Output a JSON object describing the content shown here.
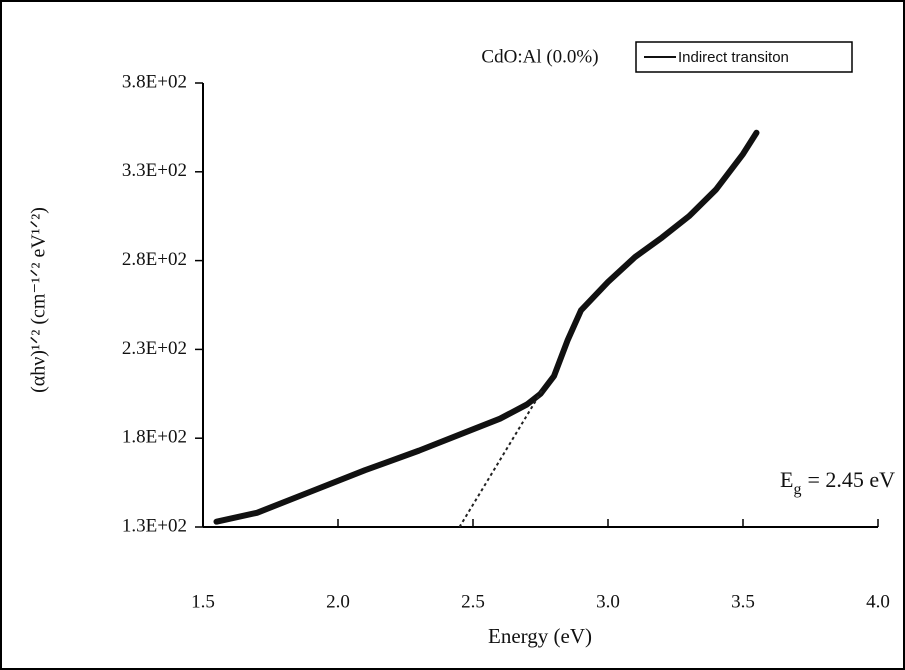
{
  "chart_data": {
    "type": "line",
    "annotation": "CdO:Al (0.0%)",
    "x_label": "Energy (eV)",
    "y_label": "(αhν)¹ᐟ² (cm⁻¹ᐟ² eV¹ᐟ²)",
    "gap_label": {
      "symbol": "E",
      "subscript": "g",
      "text": "= 2.45 eV"
    },
    "series": [
      {
        "name": "Indirect transiton",
        "color": "#111111",
        "x": [
          1.55,
          1.7,
          1.9,
          2.1,
          2.3,
          2.5,
          2.6,
          2.7,
          2.75,
          2.8,
          2.85,
          2.9,
          3.0,
          3.1,
          3.2,
          3.3,
          3.4,
          3.5,
          3.55
        ],
        "values": [
          133,
          138,
          150,
          162,
          173,
          185,
          191,
          199,
          205,
          215,
          235,
          252,
          268,
          282,
          293,
          305,
          320,
          340,
          352
        ]
      }
    ],
    "fit_line": {
      "x": [
        2.45,
        2.76
      ],
      "values": [
        130,
        208
      ]
    },
    "xlim": [
      1.5,
      4.0
    ],
    "xticks": [
      1.5,
      {
        "value": 2,
        "label": "2.0"
      },
      2.5,
      {
        "value": 3,
        "label": "3.0"
      },
      3.5,
      {
        "value": 4,
        "label": "4.0"
      }
    ],
    "ylim": [
      130,
      380
    ],
    "yticks": [
      {
        "value": 130,
        "label": "1.3E+02"
      },
      {
        "value": 180,
        "label": "1.8E+02"
      },
      {
        "value": 230,
        "label": "2.3E+02"
      },
      {
        "value": 280,
        "label": "2.8E+02"
      },
      {
        "value": 330,
        "label": "3.3E+02"
      },
      {
        "value": 380,
        "label": "3.8E+02"
      }
    ]
  }
}
